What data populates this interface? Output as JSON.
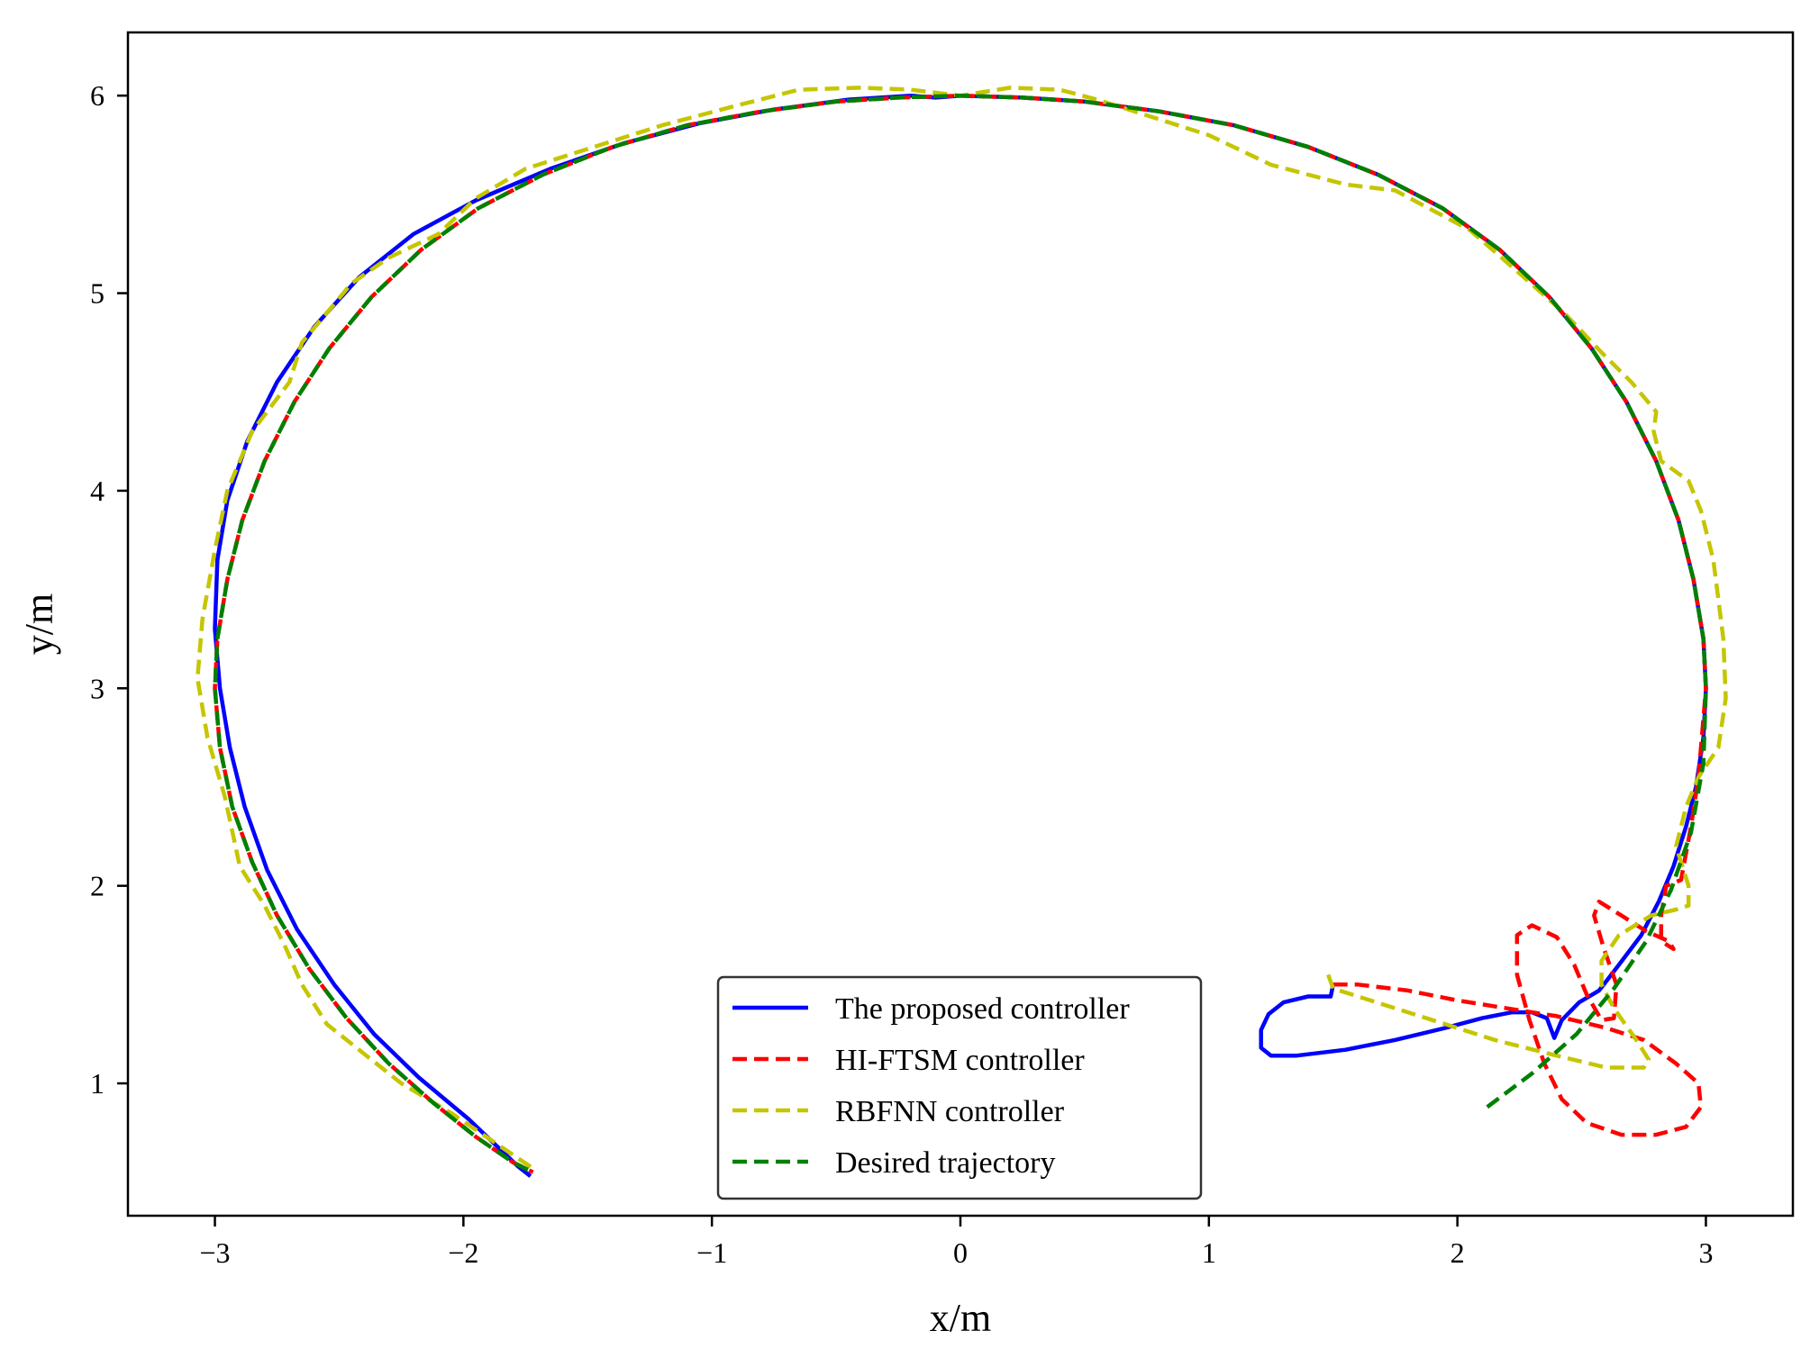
{
  "chart_data": {
    "type": "line",
    "xlabel": "x/m",
    "ylabel": "y/m",
    "xlim": [
      -3.35,
      3.35
    ],
    "ylim": [
      0.33,
      6.32
    ],
    "xticks": [
      -3,
      -2,
      -1,
      0,
      1,
      2,
      3
    ],
    "yticks": [
      1,
      2,
      3,
      4,
      5,
      6
    ],
    "xtick_labels": [
      "−3",
      "−2",
      "−1",
      "0",
      "1",
      "2",
      "3"
    ],
    "ytick_labels": [
      "1",
      "2",
      "3",
      "4",
      "5",
      "6"
    ],
    "grid": false,
    "legend_position": "lower-center",
    "series": [
      {
        "name": "The proposed controller",
        "color": "#0000ff",
        "style": "solid",
        "points": [
          [
            1.5,
            1.5
          ],
          [
            1.49,
            1.44
          ],
          [
            1.4,
            1.44
          ],
          [
            1.3,
            1.41
          ],
          [
            1.24,
            1.35
          ],
          [
            1.21,
            1.27
          ],
          [
            1.21,
            1.18
          ],
          [
            1.25,
            1.14
          ],
          [
            1.35,
            1.14
          ],
          [
            1.55,
            1.17
          ],
          [
            1.75,
            1.22
          ],
          [
            1.95,
            1.28
          ],
          [
            2.1,
            1.33
          ],
          [
            2.22,
            1.36
          ],
          [
            2.3,
            1.36
          ],
          [
            2.36,
            1.33
          ],
          [
            2.39,
            1.23
          ],
          [
            2.42,
            1.32
          ],
          [
            2.49,
            1.41
          ],
          [
            2.57,
            1.47
          ],
          [
            2.65,
            1.6
          ],
          [
            2.74,
            1.75
          ],
          [
            2.81,
            1.92
          ],
          [
            2.87,
            2.1
          ],
          [
            2.92,
            2.3
          ],
          [
            2.96,
            2.5
          ],
          [
            2.99,
            2.75
          ],
          [
            3.0,
            3.0
          ],
          [
            2.99,
            3.25
          ],
          [
            2.95,
            3.55
          ],
          [
            2.89,
            3.85
          ],
          [
            2.8,
            4.15
          ],
          [
            2.68,
            4.45
          ],
          [
            2.54,
            4.72
          ],
          [
            2.37,
            4.98
          ],
          [
            2.17,
            5.22
          ],
          [
            1.94,
            5.43
          ],
          [
            1.68,
            5.6
          ],
          [
            1.4,
            5.74
          ],
          [
            1.1,
            5.85
          ],
          [
            0.8,
            5.92
          ],
          [
            0.5,
            5.97
          ],
          [
            0.25,
            5.99
          ],
          [
            0.0,
            6.0
          ],
          [
            -0.1,
            5.99
          ],
          [
            -0.2,
            6.0
          ],
          [
            -0.45,
            5.98
          ],
          [
            -0.75,
            5.93
          ],
          [
            -1.05,
            5.86
          ],
          [
            -1.35,
            5.76
          ],
          [
            -1.65,
            5.63
          ],
          [
            -1.95,
            5.47
          ],
          [
            -2.2,
            5.3
          ],
          [
            -2.42,
            5.08
          ],
          [
            -2.6,
            4.83
          ],
          [
            -2.75,
            4.55
          ],
          [
            -2.87,
            4.25
          ],
          [
            -2.95,
            3.95
          ],
          [
            -2.99,
            3.65
          ],
          [
            -3.0,
            3.3
          ],
          [
            -2.98,
            3.0
          ],
          [
            -2.94,
            2.7
          ],
          [
            -2.88,
            2.4
          ],
          [
            -2.79,
            2.08
          ],
          [
            -2.67,
            1.78
          ],
          [
            -2.52,
            1.5
          ],
          [
            -2.36,
            1.25
          ],
          [
            -2.18,
            1.03
          ],
          [
            -1.98,
            0.82
          ],
          [
            -1.78,
            0.58
          ],
          [
            -1.73,
            0.53
          ]
        ]
      },
      {
        "name": "HI-FTSM controller",
        "color": "#ff0000",
        "style": "dashed",
        "points": [
          [
            1.5,
            1.5
          ],
          [
            1.6,
            1.5
          ],
          [
            1.8,
            1.47
          ],
          [
            2.0,
            1.42
          ],
          [
            2.2,
            1.38
          ],
          [
            2.4,
            1.34
          ],
          [
            2.6,
            1.28
          ],
          [
            2.75,
            1.22
          ],
          [
            2.88,
            1.1
          ],
          [
            2.97,
            1.0
          ],
          [
            2.98,
            0.88
          ],
          [
            2.92,
            0.78
          ],
          [
            2.8,
            0.74
          ],
          [
            2.66,
            0.74
          ],
          [
            2.52,
            0.8
          ],
          [
            2.42,
            0.92
          ],
          [
            2.35,
            1.1
          ],
          [
            2.29,
            1.32
          ],
          [
            2.24,
            1.55
          ],
          [
            2.24,
            1.75
          ],
          [
            2.3,
            1.8
          ],
          [
            2.4,
            1.74
          ],
          [
            2.47,
            1.6
          ],
          [
            2.52,
            1.45
          ],
          [
            2.58,
            1.32
          ],
          [
            2.63,
            1.33
          ],
          [
            2.64,
            1.5
          ],
          [
            2.59,
            1.68
          ],
          [
            2.55,
            1.85
          ],
          [
            2.57,
            1.92
          ],
          [
            2.66,
            1.85
          ],
          [
            2.76,
            1.77
          ],
          [
            2.85,
            1.72
          ],
          [
            2.87,
            1.68
          ],
          [
            2.82,
            1.72
          ],
          [
            2.82,
            1.85
          ],
          [
            2.84,
            2.0
          ],
          [
            2.9,
            2.03
          ],
          [
            2.94,
            2.3
          ],
          [
            2.97,
            2.55
          ],
          [
            3.0,
            3.0
          ],
          [
            2.99,
            3.25
          ],
          [
            2.95,
            3.55
          ],
          [
            2.89,
            3.85
          ],
          [
            2.8,
            4.15
          ],
          [
            2.68,
            4.45
          ],
          [
            2.54,
            4.72
          ],
          [
            2.37,
            4.98
          ],
          [
            2.17,
            5.22
          ],
          [
            1.94,
            5.43
          ],
          [
            1.68,
            5.6
          ],
          [
            1.4,
            5.74
          ],
          [
            1.1,
            5.85
          ],
          [
            0.8,
            5.92
          ],
          [
            0.5,
            5.97
          ],
          [
            0.25,
            5.99
          ],
          [
            0.0,
            6.0
          ],
          [
            -0.25,
            5.99
          ],
          [
            -0.5,
            5.97
          ],
          [
            -0.8,
            5.92
          ],
          [
            -1.1,
            5.85
          ],
          [
            -1.4,
            5.74
          ],
          [
            -1.68,
            5.6
          ],
          [
            -1.94,
            5.43
          ],
          [
            -2.17,
            5.22
          ],
          [
            -2.37,
            4.98
          ],
          [
            -2.54,
            4.72
          ],
          [
            -2.68,
            4.45
          ],
          [
            -2.8,
            4.15
          ],
          [
            -2.89,
            3.85
          ],
          [
            -2.95,
            3.55
          ],
          [
            -2.99,
            3.25
          ],
          [
            -3.0,
            3.0
          ],
          [
            -2.98,
            2.7
          ],
          [
            -2.93,
            2.4
          ],
          [
            -2.85,
            2.12
          ],
          [
            -2.75,
            1.85
          ],
          [
            -2.62,
            1.58
          ],
          [
            -2.47,
            1.33
          ],
          [
            -2.3,
            1.1
          ],
          [
            -2.12,
            0.9
          ],
          [
            -1.95,
            0.73
          ],
          [
            -1.8,
            0.6
          ],
          [
            -1.72,
            0.55
          ]
        ]
      },
      {
        "name": "RBFNN controller",
        "color": "#c5c500",
        "style": "dashed",
        "points": [
          [
            1.48,
            1.55
          ],
          [
            1.5,
            1.48
          ],
          [
            1.65,
            1.42
          ],
          [
            1.9,
            1.32
          ],
          [
            2.15,
            1.22
          ],
          [
            2.4,
            1.14
          ],
          [
            2.6,
            1.08
          ],
          [
            2.75,
            1.08
          ],
          [
            2.77,
            1.12
          ],
          [
            2.72,
            1.22
          ],
          [
            2.63,
            1.38
          ],
          [
            2.58,
            1.5
          ],
          [
            2.58,
            1.62
          ],
          [
            2.65,
            1.75
          ],
          [
            2.78,
            1.85
          ],
          [
            2.88,
            1.88
          ],
          [
            2.93,
            1.9
          ],
          [
            2.93,
            2.0
          ],
          [
            2.88,
            2.2
          ],
          [
            2.92,
            2.4
          ],
          [
            2.97,
            2.55
          ],
          [
            3.05,
            2.7
          ],
          [
            3.08,
            2.95
          ],
          [
            3.07,
            3.25
          ],
          [
            3.05,
            3.45
          ],
          [
            3.03,
            3.65
          ],
          [
            2.98,
            3.9
          ],
          [
            2.93,
            4.05
          ],
          [
            2.82,
            4.15
          ],
          [
            2.79,
            4.3
          ],
          [
            2.8,
            4.4
          ],
          [
            2.7,
            4.55
          ],
          [
            2.58,
            4.7
          ],
          [
            2.43,
            4.9
          ],
          [
            2.25,
            5.1
          ],
          [
            2.05,
            5.32
          ],
          [
            1.75,
            5.52
          ],
          [
            1.55,
            5.55
          ],
          [
            1.25,
            5.65
          ],
          [
            1.0,
            5.8
          ],
          [
            0.75,
            5.9
          ],
          [
            0.55,
            5.98
          ],
          [
            0.4,
            6.03
          ],
          [
            0.2,
            6.04
          ],
          [
            0.0,
            6.0
          ],
          [
            -0.2,
            6.03
          ],
          [
            -0.4,
            6.04
          ],
          [
            -0.65,
            6.03
          ],
          [
            -0.9,
            5.95
          ],
          [
            -1.2,
            5.85
          ],
          [
            -1.5,
            5.73
          ],
          [
            -1.75,
            5.63
          ],
          [
            -1.95,
            5.48
          ],
          [
            -2.1,
            5.3
          ],
          [
            -2.3,
            5.18
          ],
          [
            -2.45,
            5.05
          ],
          [
            -2.55,
            4.9
          ],
          [
            -2.65,
            4.75
          ],
          [
            -2.7,
            4.55
          ],
          [
            -2.85,
            4.3
          ],
          [
            -2.95,
            4.0
          ],
          [
            -3.0,
            3.7
          ],
          [
            -3.05,
            3.35
          ],
          [
            -3.07,
            3.05
          ],
          [
            -3.03,
            2.75
          ],
          [
            -2.96,
            2.45
          ],
          [
            -2.9,
            2.1
          ],
          [
            -2.8,
            1.9
          ],
          [
            -2.72,
            1.7
          ],
          [
            -2.65,
            1.5
          ],
          [
            -2.55,
            1.3
          ],
          [
            -2.4,
            1.15
          ],
          [
            -2.25,
            1.0
          ],
          [
            -2.05,
            0.85
          ],
          [
            -1.85,
            0.68
          ],
          [
            -1.72,
            0.57
          ]
        ]
      },
      {
        "name": "Desired trajectory",
        "color": "#008000",
        "style": "dashed",
        "points": [
          [
            2.12,
            0.88
          ],
          [
            2.3,
            1.05
          ],
          [
            2.48,
            1.25
          ],
          [
            2.63,
            1.48
          ],
          [
            2.76,
            1.72
          ],
          [
            2.86,
            1.98
          ],
          [
            2.94,
            2.27
          ],
          [
            2.99,
            2.62
          ],
          [
            3.0,
            3.0
          ],
          [
            2.99,
            3.25
          ],
          [
            2.95,
            3.55
          ],
          [
            2.89,
            3.85
          ],
          [
            2.8,
            4.15
          ],
          [
            2.68,
            4.45
          ],
          [
            2.54,
            4.72
          ],
          [
            2.37,
            4.98
          ],
          [
            2.17,
            5.22
          ],
          [
            1.94,
            5.43
          ],
          [
            1.68,
            5.6
          ],
          [
            1.4,
            5.74
          ],
          [
            1.1,
            5.85
          ],
          [
            0.8,
            5.92
          ],
          [
            0.5,
            5.97
          ],
          [
            0.25,
            5.99
          ],
          [
            0.0,
            6.0
          ],
          [
            -0.25,
            5.99
          ],
          [
            -0.5,
            5.97
          ],
          [
            -0.8,
            5.92
          ],
          [
            -1.1,
            5.85
          ],
          [
            -1.4,
            5.74
          ],
          [
            -1.68,
            5.6
          ],
          [
            -1.94,
            5.43
          ],
          [
            -2.17,
            5.22
          ],
          [
            -2.37,
            4.98
          ],
          [
            -2.54,
            4.72
          ],
          [
            -2.68,
            4.45
          ],
          [
            -2.8,
            4.15
          ],
          [
            -2.89,
            3.85
          ],
          [
            -2.95,
            3.55
          ],
          [
            -2.99,
            3.25
          ],
          [
            -3.0,
            3.0
          ],
          [
            -2.98,
            2.7
          ],
          [
            -2.93,
            2.4
          ],
          [
            -2.85,
            2.12
          ],
          [
            -2.75,
            1.85
          ],
          [
            -2.62,
            1.58
          ],
          [
            -2.47,
            1.33
          ],
          [
            -2.3,
            1.1
          ],
          [
            -2.12,
            0.9
          ],
          [
            -1.95,
            0.73
          ],
          [
            -1.8,
            0.6
          ],
          [
            -1.72,
            0.55
          ]
        ]
      }
    ]
  }
}
